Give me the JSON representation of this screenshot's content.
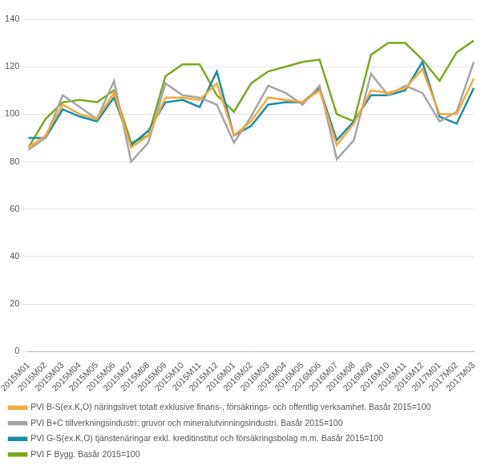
{
  "chart_data": {
    "type": "line",
    "categories": [
      "2015M01",
      "2015M02",
      "2015M03",
      "2015M04",
      "2015M05",
      "2015M06",
      "2015M07",
      "2015M08",
      "2015M09",
      "2015M10",
      "2015M11",
      "2015M12",
      "2016M01",
      "2016M02",
      "2016M03",
      "2016M04",
      "2016M05",
      "2016M06",
      "2016M07",
      "2016M08",
      "2016M09",
      "2016M10",
      "2016M11",
      "2016M12",
      "2017M01",
      "2017M02",
      "2017M03"
    ],
    "series": [
      {
        "name": "PVI B-S(ex.K,O) näringslivet totalt exklusive finans-, försäkrings- och offentlig verksamhet. Basår 2015=100",
        "color": "#f2a93b",
        "values": [
          86,
          91,
          104,
          100,
          98,
          109,
          86,
          91,
          107,
          107,
          106,
          113,
          91,
          97,
          107,
          106,
          105,
          110,
          87,
          96,
          110,
          109,
          111,
          119,
          100,
          100,
          115
        ]
      },
      {
        "name": "PVI B+C tillverkningsindustri; gruvor och mineralutvinningsindustri. Basår 2015=100",
        "color": "#a6a6a6",
        "values": [
          85,
          90,
          108,
          103,
          98,
          114,
          80,
          88,
          113,
          108,
          107,
          104,
          88,
          99,
          112,
          109,
          104,
          112,
          81,
          89,
          117,
          108,
          112,
          109,
          97,
          101,
          122
        ]
      },
      {
        "name": "PVI G-S(ex.K,O) tjänstenäringar exkl. kreditinstitut och försäkringsbolag m.m. Basår 2015=100",
        "color": "#1b8ca6",
        "values": [
          90,
          90,
          102,
          99,
          97,
          107,
          87,
          93,
          105,
          106,
          103,
          118,
          91,
          95,
          104,
          105,
          105,
          111,
          89,
          97,
          108,
          108,
          110,
          122,
          99,
          96,
          111
        ]
      },
      {
        "name": "PVI F Bygg. Basår 2015=100",
        "color": "#7aa91f",
        "values": [
          86,
          98,
          105,
          106,
          105,
          110,
          88,
          91,
          116,
          121,
          121,
          108,
          101,
          113,
          118,
          120,
          122,
          123,
          100,
          97,
          125,
          130,
          130,
          123,
          114,
          126,
          131
        ]
      }
    ],
    "ylim": [
      0,
      140
    ],
    "yticks": [
      0,
      20,
      40,
      60,
      80,
      100,
      120,
      140
    ],
    "grid": true,
    "legend": "bottom"
  }
}
